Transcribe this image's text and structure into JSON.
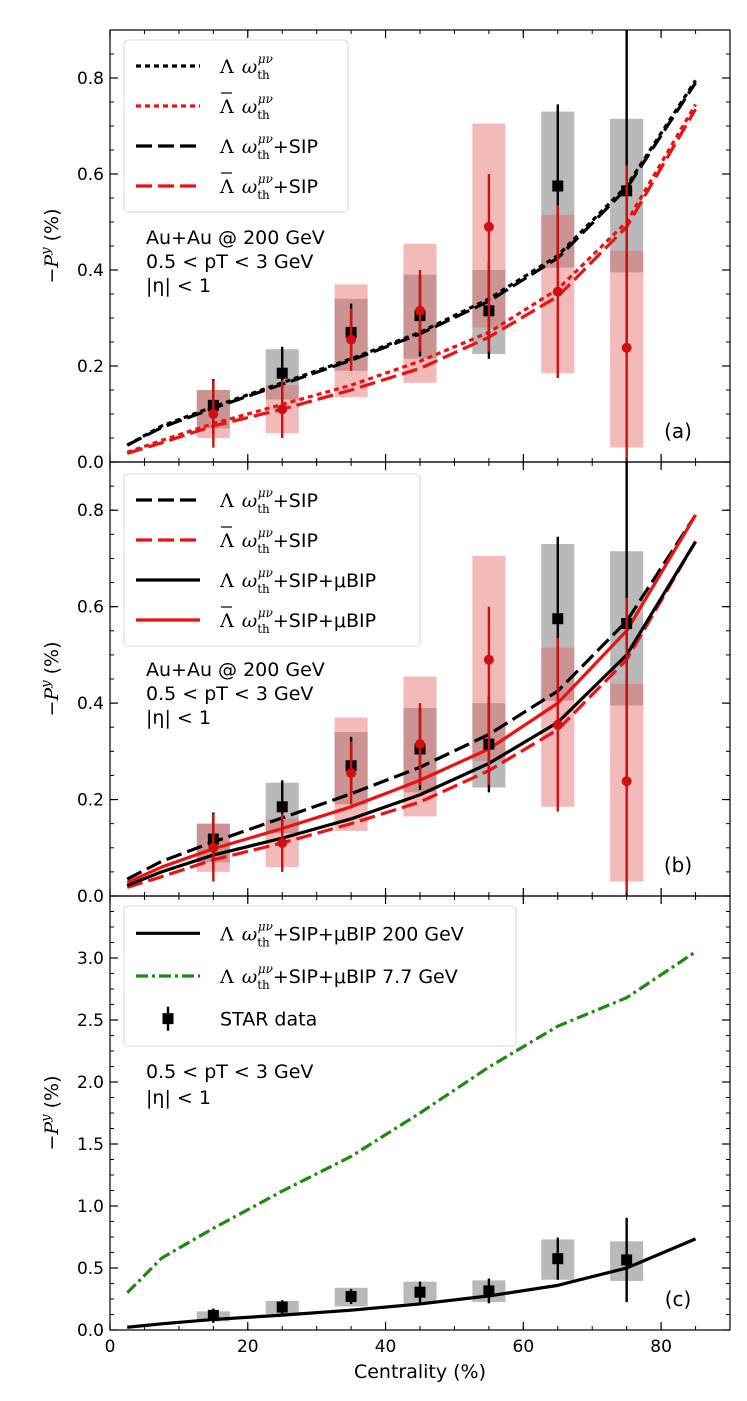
{
  "chart_data": [
    {
      "type": "line",
      "panel": "(a)",
      "ylabel": "−P^y (%)",
      "xlim": [
        0,
        90
      ],
      "ylim": [
        0,
        0.9
      ],
      "yticks": [
        0.0,
        0.2,
        0.4,
        0.6,
        0.8
      ],
      "ytick_labels": [
        "0.0",
        "0.2",
        "0.4",
        "0.6",
        "0.8"
      ],
      "notes": [
        "Au+Au @ 200 GeV",
        "0.5 < pT < 3 GeV",
        "|η| < 1"
      ],
      "legend": [
        {
          "symbol": "Λ",
          "bar": false,
          "text": "ωth^μν",
          "suffix": "",
          "style": "dotted",
          "color": "#000000"
        },
        {
          "symbol": "Λ",
          "bar": true,
          "text": "ωth^μν",
          "suffix": "",
          "style": "dotted",
          "color": "#ee1111"
        },
        {
          "symbol": "Λ",
          "bar": false,
          "text": "ωth^μν",
          "suffix": "+SIP",
          "style": "dashed",
          "color": "#000000"
        },
        {
          "symbol": "Λ",
          "bar": true,
          "text": "ωth^μν",
          "suffix": "+SIP",
          "style": "dashed",
          "color": "#ee1111"
        }
      ],
      "series": [
        {
          "name": "Λ ωth dotted",
          "style": "dotted",
          "color": "#000000",
          "x": [
            2.5,
            7.5,
            15,
            25,
            35,
            45,
            55,
            65,
            75,
            85
          ],
          "y": [
            0.035,
            0.075,
            0.115,
            0.165,
            0.215,
            0.27,
            0.34,
            0.43,
            0.575,
            0.795
          ]
        },
        {
          "name": "Λbar ωth dotted",
          "style": "dotted",
          "color": "#ee1111",
          "x": [
            2.5,
            7.5,
            15,
            25,
            35,
            45,
            55,
            65,
            75,
            85
          ],
          "y": [
            0.02,
            0.045,
            0.08,
            0.12,
            0.16,
            0.21,
            0.27,
            0.36,
            0.5,
            0.745
          ]
        },
        {
          "name": "Λ ωth+SIP",
          "style": "dashed",
          "color": "#000000",
          "x": [
            2.5,
            7.5,
            15,
            25,
            35,
            45,
            55,
            65,
            75,
            85
          ],
          "y": [
            0.035,
            0.072,
            0.112,
            0.162,
            0.212,
            0.267,
            0.335,
            0.425,
            0.57,
            0.79
          ]
        },
        {
          "name": "Λbar ωth+SIP",
          "style": "dashed",
          "color": "#ee1111",
          "x": [
            2.5,
            7.5,
            15,
            25,
            35,
            45,
            55,
            65,
            75,
            85
          ],
          "y": [
            0.018,
            0.04,
            0.075,
            0.11,
            0.15,
            0.195,
            0.26,
            0.345,
            0.49,
            0.735
          ]
        }
      ],
      "data_points": [
        {
          "name": "Λ STAR",
          "marker": "square",
          "color": "#000000",
          "x": [
            15,
            25,
            35,
            45,
            55,
            65,
            75
          ],
          "y": [
            0.118,
            0.185,
            0.27,
            0.305,
            0.315,
            0.575,
            0.565
          ],
          "err_low": [
            0.06,
            0.055,
            0.06,
            0.085,
            0.1,
            0.17,
            0.34
          ],
          "err_high": [
            0.055,
            0.055,
            0.06,
            0.085,
            0.1,
            0.17,
            0.34
          ],
          "sys_low": [
            0.07,
            0.13,
            0.19,
            0.215,
            0.225,
            0.405,
            0.395
          ],
          "sys_high": [
            0.15,
            0.235,
            0.34,
            0.39,
            0.4,
            0.73,
            0.715
          ]
        },
        {
          "name": "Λbar STAR",
          "marker": "circle",
          "color": "#d01010",
          "x": [
            15,
            25,
            35,
            45,
            55,
            65,
            75
          ],
          "y": [
            0.1,
            0.11,
            0.255,
            0.315,
            0.49,
            0.355,
            0.238
          ],
          "err_low": [
            0.07,
            0.06,
            0.065,
            0.085,
            0.26,
            0.18,
            0.25
          ],
          "err_high": [
            0.07,
            0.06,
            0.065,
            0.085,
            0.11,
            0.18,
            0.38
          ],
          "sys_low": [
            0.05,
            0.06,
            0.135,
            0.165,
            0.28,
            0.185,
            0.03
          ],
          "sys_high": [
            0.15,
            0.16,
            0.37,
            0.455,
            0.705,
            0.515,
            0.44
          ]
        }
      ]
    },
    {
      "type": "line",
      "panel": "(b)",
      "ylabel": "−P^y (%)",
      "xlim": [
        0,
        90
      ],
      "ylim": [
        0,
        0.9
      ],
      "yticks": [
        0.0,
        0.2,
        0.4,
        0.6,
        0.8
      ],
      "ytick_labels": [
        "0.0",
        "0.2",
        "0.4",
        "0.6",
        "0.8"
      ],
      "notes": [
        "Au+Au @ 200 GeV",
        "0.5 < pT < 3 GeV",
        "|η| < 1"
      ],
      "legend": [
        {
          "symbol": "Λ",
          "bar": false,
          "text": "ωth^μν",
          "suffix": "+SIP",
          "style": "dashed",
          "color": "#000000"
        },
        {
          "symbol": "Λ",
          "bar": true,
          "text": "ωth^μν",
          "suffix": "+SIP",
          "style": "dashed",
          "color": "#ee1111"
        },
        {
          "symbol": "Λ",
          "bar": false,
          "text": "ωth^μν",
          "suffix": "+SIP+μBIP",
          "style": "solid",
          "color": "#000000"
        },
        {
          "symbol": "Λ",
          "bar": true,
          "text": "ωth^μν",
          "suffix": "+SIP+μBIP",
          "style": "solid",
          "color": "#ee1111"
        }
      ],
      "series": [
        {
          "name": "Λ ωth+SIP",
          "style": "dashed",
          "color": "#000000",
          "x": [
            2.5,
            7.5,
            15,
            25,
            35,
            45,
            55,
            65,
            75,
            85
          ],
          "y": [
            0.035,
            0.072,
            0.112,
            0.162,
            0.212,
            0.267,
            0.335,
            0.425,
            0.57,
            0.79
          ]
        },
        {
          "name": "Λbar ωth+SIP",
          "style": "dashed",
          "color": "#ee1111",
          "x": [
            2.5,
            7.5,
            15,
            25,
            35,
            45,
            55,
            65,
            75,
            85
          ],
          "y": [
            0.018,
            0.04,
            0.075,
            0.11,
            0.15,
            0.195,
            0.26,
            0.345,
            0.49,
            0.735
          ]
        },
        {
          "name": "Λ ωth+SIP+μBIP",
          "style": "solid",
          "color": "#000000",
          "x": [
            2.5,
            7.5,
            15,
            25,
            35,
            45,
            55,
            65,
            75,
            85
          ],
          "y": [
            0.022,
            0.05,
            0.085,
            0.12,
            0.16,
            0.21,
            0.275,
            0.36,
            0.5,
            0.735
          ]
        },
        {
          "name": "Λbar ωth+SIP+μBIP",
          "style": "solid",
          "color": "#ee1111",
          "x": [
            2.5,
            7.5,
            15,
            25,
            35,
            45,
            55,
            65,
            75,
            85
          ],
          "y": [
            0.028,
            0.06,
            0.098,
            0.14,
            0.185,
            0.24,
            0.305,
            0.4,
            0.55,
            0.79
          ]
        }
      ],
      "data_points": [
        {
          "name": "Λ STAR",
          "marker": "square",
          "color": "#000000",
          "x": [
            15,
            25,
            35,
            45,
            55,
            65,
            75
          ],
          "y": [
            0.118,
            0.185,
            0.27,
            0.305,
            0.315,
            0.575,
            0.565
          ],
          "err_low": [
            0.06,
            0.055,
            0.06,
            0.085,
            0.1,
            0.17,
            0.34
          ],
          "err_high": [
            0.055,
            0.055,
            0.06,
            0.085,
            0.1,
            0.17,
            0.34
          ],
          "sys_low": [
            0.07,
            0.13,
            0.19,
            0.215,
            0.225,
            0.405,
            0.395
          ],
          "sys_high": [
            0.15,
            0.235,
            0.34,
            0.39,
            0.4,
            0.73,
            0.715
          ]
        },
        {
          "name": "Λbar STAR",
          "marker": "circle",
          "color": "#d01010",
          "x": [
            15,
            25,
            35,
            45,
            55,
            65,
            75
          ],
          "y": [
            0.1,
            0.11,
            0.255,
            0.315,
            0.49,
            0.355,
            0.238
          ],
          "err_low": [
            0.07,
            0.06,
            0.065,
            0.085,
            0.26,
            0.18,
            0.25
          ],
          "err_high": [
            0.07,
            0.06,
            0.065,
            0.085,
            0.11,
            0.18,
            0.38
          ],
          "sys_low": [
            0.05,
            0.06,
            0.135,
            0.165,
            0.28,
            0.185,
            0.03
          ],
          "sys_high": [
            0.15,
            0.16,
            0.37,
            0.455,
            0.705,
            0.515,
            0.44
          ]
        }
      ]
    },
    {
      "type": "line",
      "panel": "(c)",
      "ylabel": "−P^y (%)",
      "xlabel": "Centrality (%)",
      "xlim": [
        0,
        90
      ],
      "ylim": [
        0,
        3.5
      ],
      "xticks": [
        0,
        20,
        40,
        60,
        80
      ],
      "xtick_labels": [
        "0",
        "20",
        "40",
        "60",
        "80"
      ],
      "yticks": [
        0.0,
        0.5,
        1.0,
        1.5,
        2.0,
        2.5,
        3.0
      ],
      "ytick_labels": [
        "0.0",
        "0.5",
        "1.0",
        "1.5",
        "2.0",
        "2.5",
        "3.0"
      ],
      "notes": [
        "0.5 < pT < 3 GeV",
        "|η| < 1"
      ],
      "legend": [
        {
          "symbol": "Λ",
          "bar": false,
          "text": "ωth^μν",
          "suffix": "+SIP+μBIP 200 GeV",
          "style": "solid",
          "color": "#000000"
        },
        {
          "symbol": "Λ",
          "bar": false,
          "text": "ωth^μν",
          "suffix": "+SIP+μBIP 7.7 GeV",
          "style": "dashdot",
          "color": "#1e8a10"
        },
        {
          "symbol": "",
          "bar": false,
          "text": "",
          "suffix": "STAR data",
          "style": "marker",
          "color": "#000000"
        }
      ],
      "series": [
        {
          "name": "Λ ωth+SIP+μBIP 200 GeV",
          "style": "solid",
          "color": "#000000",
          "x": [
            2.5,
            7.5,
            15,
            25,
            35,
            45,
            55,
            65,
            75,
            85
          ],
          "y": [
            0.022,
            0.05,
            0.085,
            0.12,
            0.16,
            0.21,
            0.275,
            0.36,
            0.5,
            0.735
          ]
        },
        {
          "name": "Λ ωth+SIP+μBIP 7.7 GeV",
          "style": "dashdot",
          "color": "#1e8a10",
          "x": [
            2.5,
            7.5,
            15,
            25,
            35,
            45,
            55,
            65,
            75,
            85
          ],
          "y": [
            0.3,
            0.58,
            0.82,
            1.12,
            1.4,
            1.75,
            2.12,
            2.45,
            2.68,
            3.05
          ]
        }
      ],
      "data_points": [
        {
          "name": "STAR data",
          "marker": "square",
          "color": "#000000",
          "x": [
            15,
            25,
            35,
            45,
            55,
            65,
            75
          ],
          "y": [
            0.118,
            0.185,
            0.27,
            0.305,
            0.315,
            0.575,
            0.565
          ],
          "err_low": [
            0.06,
            0.055,
            0.06,
            0.085,
            0.1,
            0.17,
            0.34
          ],
          "err_high": [
            0.055,
            0.055,
            0.06,
            0.085,
            0.1,
            0.17,
            0.34
          ],
          "sys_low": [
            0.07,
            0.13,
            0.19,
            0.215,
            0.225,
            0.405,
            0.395
          ],
          "sys_high": [
            0.15,
            0.235,
            0.34,
            0.39,
            0.4,
            0.73,
            0.715
          ]
        }
      ]
    }
  ]
}
